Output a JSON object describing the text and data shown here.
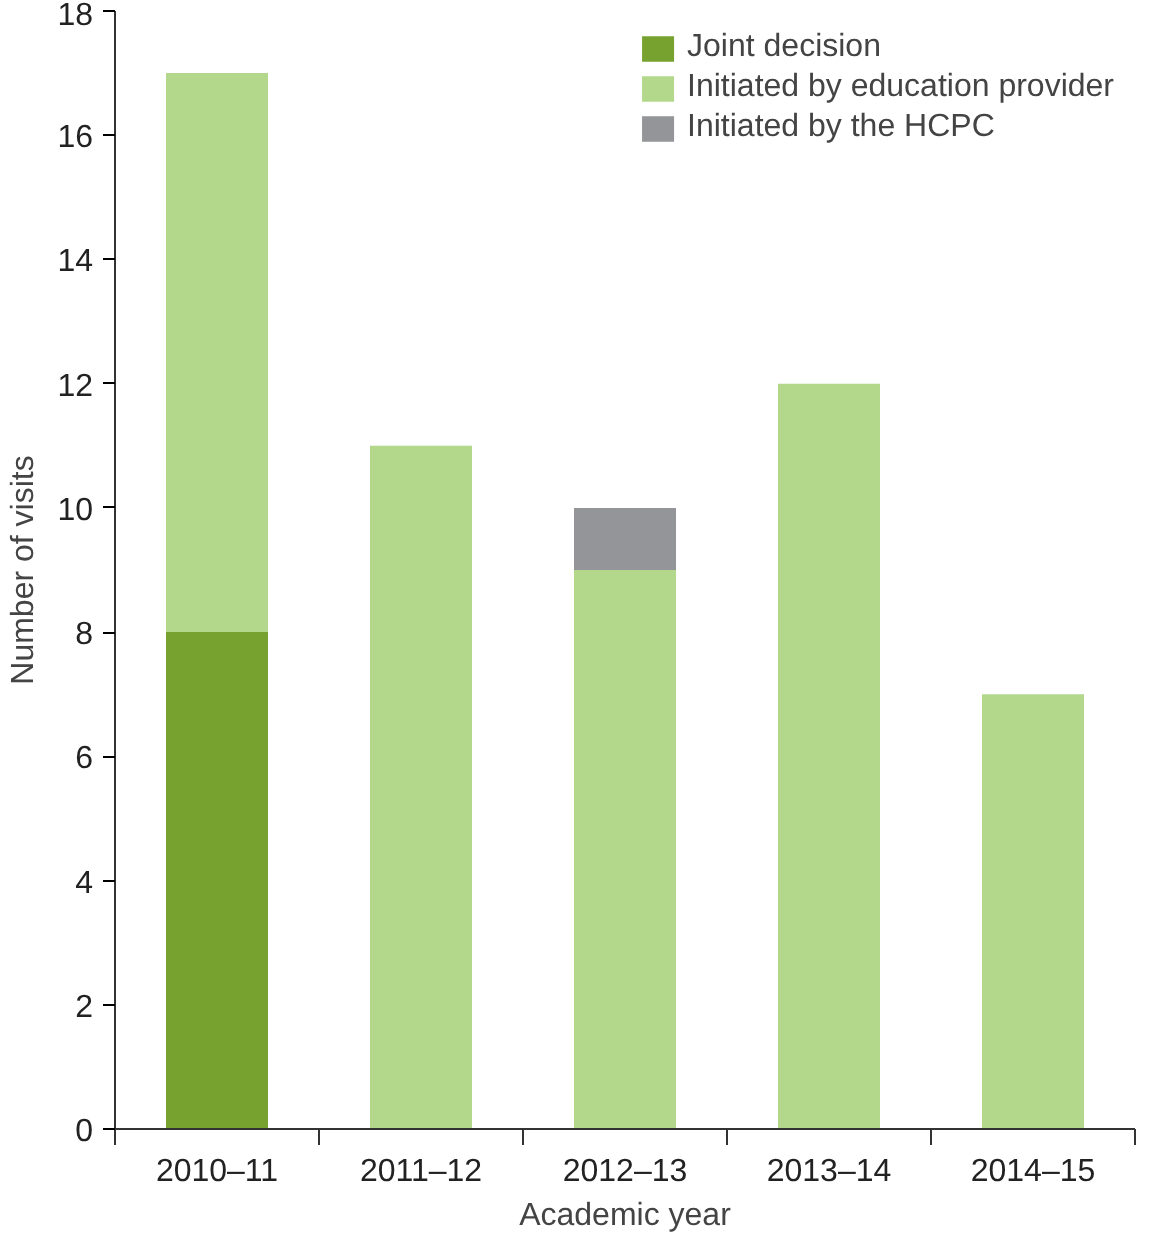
{
  "chart_data": {
    "type": "bar",
    "stacked": true,
    "xlabel": "Academic year",
    "ylabel": "Number of visits",
    "categories": [
      "2010–11",
      "2011–12",
      "2012–13",
      "2013–14",
      "2014–15"
    ],
    "series": [
      {
        "name": "Joint decision",
        "color": "#78a22f",
        "values": [
          8,
          0,
          0,
          0,
          0
        ]
      },
      {
        "name": "Initiated by education provider",
        "color": "#b3d88c",
        "values": [
          9,
          11,
          9,
          12,
          7
        ]
      },
      {
        "name": "Initiated by the HCPC",
        "color": "#939598",
        "values": [
          0,
          0,
          1,
          0,
          0
        ]
      }
    ],
    "ylim": [
      0,
      18
    ],
    "yticks": [
      0,
      2,
      4,
      6,
      8,
      10,
      12,
      14,
      16,
      18
    ],
    "grid": false,
    "legend": "top right"
  }
}
